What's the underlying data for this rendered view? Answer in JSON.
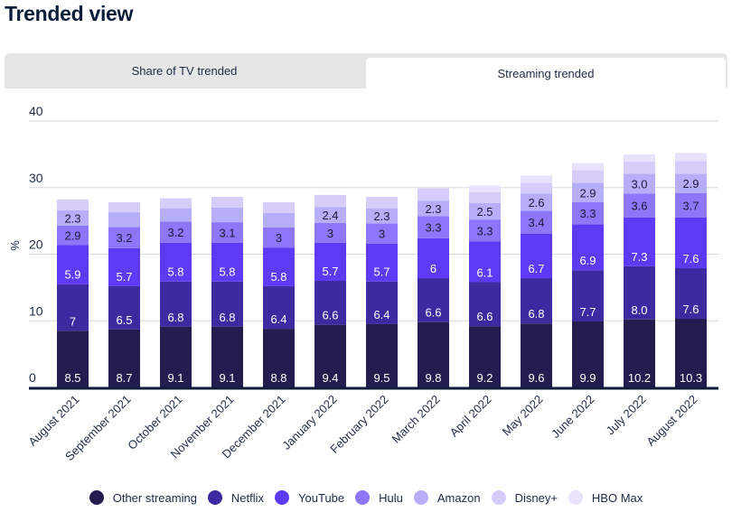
{
  "page": {
    "title": "Trended view"
  },
  "tabs": [
    {
      "label": "Share of TV trended",
      "active": false
    },
    {
      "label": "Streaming trended",
      "active": true
    }
  ],
  "chart_data": {
    "type": "bar",
    "stacked": true,
    "title": "",
    "xlabel": "",
    "ylabel": "%",
    "ylim": [
      0,
      40
    ],
    "yticks": [
      0,
      10,
      20,
      30,
      40
    ],
    "grid": true,
    "legend_position": "bottom",
    "categories": [
      "August 2021",
      "September 2021",
      "October 2021",
      "November 2021",
      "December 2021",
      "January 2022",
      "February 2022",
      "March 2022",
      "April 2022",
      "May 2022",
      "June 2022",
      "July 2022",
      "August 2022"
    ],
    "series": [
      {
        "name": "Other streaming",
        "color": "#241c4f",
        "label_color": "#ffffff",
        "values": [
          8.5,
          8.7,
          9.1,
          9.1,
          8.8,
          9.4,
          9.5,
          9.8,
          9.2,
          9.6,
          9.9,
          10.2,
          10.3
        ],
        "labels": [
          "8.5",
          "8.7",
          "9.1",
          "9.1",
          "8.8",
          "9.4",
          "9.5",
          "9.8",
          "9.2",
          "9.6",
          "9.9",
          "10.2",
          "10.3"
        ]
      },
      {
        "name": "Netflix",
        "color": "#3d2aa0",
        "label_color": "#ffffff",
        "values": [
          7,
          6.5,
          6.8,
          6.8,
          6.4,
          6.6,
          6.4,
          6.6,
          6.6,
          6.8,
          7.7,
          8.0,
          7.6
        ],
        "labels": [
          "7",
          "6.5",
          "6.8",
          "6.8",
          "6.4",
          "6.6",
          "6.4",
          "6.6",
          "6.6",
          "6.8",
          "7.7",
          "8.0",
          "7.6"
        ]
      },
      {
        "name": "YouTube",
        "color": "#5d3bf5",
        "label_color": "#ffffff",
        "values": [
          5.9,
          5.7,
          5.8,
          5.8,
          5.8,
          5.7,
          5.7,
          6,
          6.1,
          6.7,
          6.9,
          7.3,
          7.6
        ],
        "labels": [
          "5.9",
          "5.7",
          "5.8",
          "5.8",
          "5.8",
          "5.7",
          "5.7",
          "6",
          "6.1",
          "6.7",
          "6.9",
          "7.3",
          "7.6"
        ]
      },
      {
        "name": "Hulu",
        "color": "#8d76f7",
        "label_color": "#1d1a3a",
        "values": [
          2.9,
          3.2,
          3.2,
          3.1,
          3,
          3,
          3,
          3.3,
          3.3,
          3.4,
          3.3,
          3.6,
          3.7
        ],
        "labels": [
          "2.9",
          "3.2",
          "3.2",
          "3.1",
          "3",
          "3",
          "3",
          "3.3",
          "3.3",
          "3.4",
          "3.3",
          "3.6",
          "3.7"
        ]
      },
      {
        "name": "Amazon",
        "color": "#b6aef9",
        "label_color": "#1d1a3a",
        "values": [
          2.3,
          2.2,
          2.0,
          2.2,
          2.2,
          2.4,
          2.3,
          2.3,
          2.5,
          2.6,
          2.9,
          3.0,
          2.9
        ],
        "labels": [
          "2.3",
          "",
          "",
          "",
          "",
          "2.4",
          "2.3",
          "2.3",
          "2.5",
          "2.6",
          "2.9",
          "3.0",
          "2.9"
        ]
      },
      {
        "name": "Disney+",
        "color": "#d6cdfb",
        "label_color": "#1d1a3a",
        "values": [
          1.6,
          1.5,
          1.5,
          1.6,
          1.6,
          1.8,
          1.7,
          1.9,
          1.6,
          1.6,
          1.9,
          1.8,
          1.9
        ],
        "labels": [
          "",
          "",
          "",
          "",
          "",
          "",
          "",
          "",
          "",
          "",
          "",
          "",
          ""
        ]
      },
      {
        "name": "HBO Max",
        "color": "#e8e2fd",
        "label_color": "#1d1a3a",
        "values": [
          0,
          0,
          0,
          0,
          0,
          0,
          0,
          0,
          1.0,
          1.1,
          1.1,
          1.1,
          1.2
        ],
        "labels": [
          "",
          "",
          "",
          "",
          "",
          "",
          "",
          "",
          "",
          "",
          "",
          "",
          ""
        ]
      }
    ]
  }
}
